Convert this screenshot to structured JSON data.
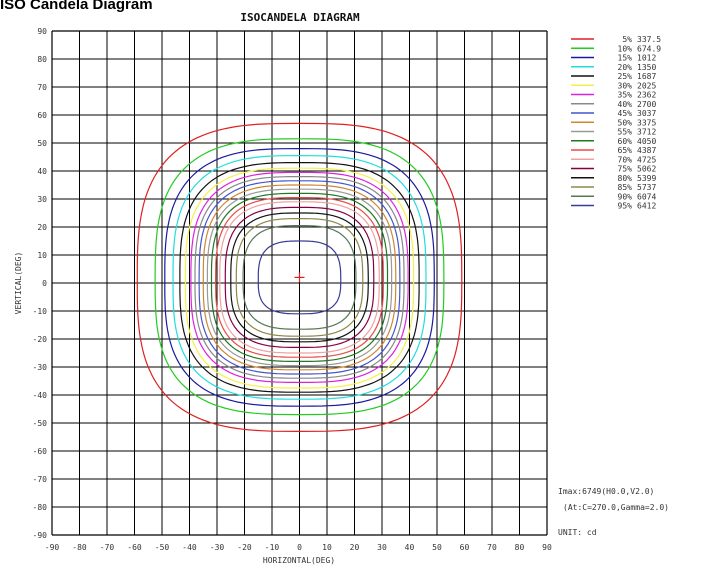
{
  "page_title": "ISO Candela Diagram",
  "chart_data": {
    "type": "line",
    "title": "ISOCANDELA DIAGRAM",
    "xlabel": "HORIZONTAL(DEG)",
    "ylabel": "VERTICAL(DEG)",
    "xlim": [
      -90,
      90
    ],
    "ylim": [
      -90,
      90
    ],
    "xticks": [
      -90,
      -80,
      -70,
      -60,
      -50,
      -40,
      -30,
      -20,
      -10,
      0,
      10,
      20,
      30,
      40,
      50,
      60,
      70,
      80,
      90
    ],
    "yticks": [
      90,
      80,
      70,
      60,
      50,
      40,
      30,
      20,
      10,
      0,
      -10,
      -20,
      -30,
      -40,
      -50,
      -60,
      -70,
      -80,
      -90
    ],
    "grid": true,
    "legend_position": "top-right",
    "peak_marker": {
      "x": 0,
      "y": 2
    },
    "series": [
      {
        "name": "5% 337.5",
        "color": "#e02020",
        "rx": 59.0,
        "top": 57.0,
        "bottom": -55.0
      },
      {
        "name": "10% 674.9",
        "color": "#22cc22",
        "rx": 52.5,
        "top": 51.5,
        "bottom": -49.0
      },
      {
        "name": "15% 1012",
        "color": "#1a1aa0",
        "rx": 49.0,
        "top": 48.0,
        "bottom": -46.0
      },
      {
        "name": "20% 1350",
        "color": "#22dddd",
        "rx": 46.0,
        "top": 45.5,
        "bottom": -43.5
      },
      {
        "name": "25% 1687",
        "color": "#111111",
        "rx": 43.5,
        "top": 43.0,
        "bottom": -41.0
      },
      {
        "name": "30% 2025",
        "color": "#f2f24a",
        "rx": 41.5,
        "top": 41.0,
        "bottom": -39.5
      },
      {
        "name": "35% 2362",
        "color": "#dd22dd",
        "rx": 39.5,
        "top": 39.5,
        "bottom": -37.5
      },
      {
        "name": "40% 2700",
        "color": "#888888",
        "rx": 38.0,
        "top": 38.0,
        "bottom": -36.0
      },
      {
        "name": "45% 3037",
        "color": "#4455cc",
        "rx": 36.5,
        "top": 36.5,
        "bottom": -34.5
      },
      {
        "name": "50% 3375",
        "color": "#cc8833",
        "rx": 35.0,
        "top": 35.0,
        "bottom": -33.0
      },
      {
        "name": "55% 3712",
        "color": "#999999",
        "rx": 33.5,
        "top": 33.5,
        "bottom": -31.5
      },
      {
        "name": "60% 4050",
        "color": "#227722",
        "rx": 32.0,
        "top": 32.0,
        "bottom": -30.0
      },
      {
        "name": "65% 4387",
        "color": "#e84a4a",
        "rx": 30.5,
        "top": 30.5,
        "bottom": -28.5
      },
      {
        "name": "70% 4725",
        "color": "#f0a0a0",
        "rx": 29.0,
        "top": 29.0,
        "bottom": -27.0
      },
      {
        "name": "75% 5062",
        "color": "#880044",
        "rx": 27.0,
        "top": 27.0,
        "bottom": -25.0
      },
      {
        "name": "80% 5399",
        "color": "#111111",
        "rx": 25.0,
        "top": 25.0,
        "bottom": -23.0
      },
      {
        "name": "85% 5737",
        "color": "#8a8a4a",
        "rx": 23.0,
        "top": 23.0,
        "bottom": -21.0
      },
      {
        "name": "90% 6074",
        "color": "#557755",
        "rx": 20.5,
        "top": 20.5,
        "bottom": -18.5
      },
      {
        "name": "95% 6412",
        "color": "#3a3a99",
        "rx": 15.0,
        "top": 15.0,
        "bottom": -13.0
      }
    ],
    "annotations": {
      "imax": "Imax:6749(H0.0,V2.0)",
      "at": "(At:C=270.0,Gamma=2.0)",
      "unit": "UNIT: cd"
    }
  }
}
